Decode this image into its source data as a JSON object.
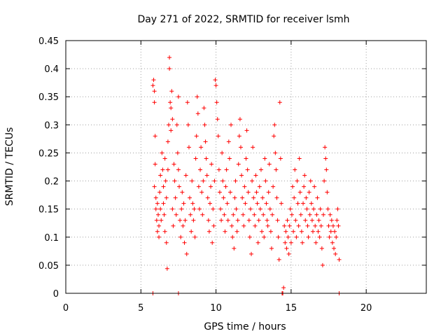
{
  "chart_data": {
    "type": "scatter",
    "title": "Day 271 of 2022, SRMTID for receiver lsmh",
    "xlabel": "GPS time / hours",
    "ylabel": "SRMTID / TECUs",
    "xlim": [
      0,
      24
    ],
    "ylim": [
      0,
      0.45
    ],
    "xticks": [
      0,
      5,
      10,
      15,
      20
    ],
    "xtick_labels": [
      "0",
      "5",
      "10",
      "15",
      "20"
    ],
    "yticks": [
      0,
      0.05,
      0.1,
      0.15,
      0.2,
      0.25,
      0.3,
      0.35,
      0.4,
      0.45
    ],
    "ytick_labels": [
      "0",
      "0.05",
      "0.1",
      "0.15",
      "0.2",
      "0.25",
      "0.3",
      "0.35",
      "0.4",
      "0.45"
    ],
    "grid": true,
    "marker": "+",
    "color": "#ff0000",
    "series": [
      {
        "name": "lsmh",
        "points": [
          [
            5.8,
            0.0
          ],
          [
            5.85,
            0.38
          ],
          [
            5.9,
            0.36
          ],
          [
            5.9,
            0.34
          ],
          [
            5.95,
            0.28
          ],
          [
            5.95,
            0.23
          ],
          [
            5.9,
            0.19
          ],
          [
            6.0,
            0.17
          ],
          [
            6.0,
            0.15
          ],
          [
            6.05,
            0.13
          ],
          [
            6.1,
            0.11
          ],
          [
            6.1,
            0.16
          ],
          [
            6.15,
            0.14
          ],
          [
            6.2,
            0.12
          ],
          [
            6.2,
            0.1
          ],
          [
            6.25,
            0.18
          ],
          [
            6.3,
            0.21
          ],
          [
            6.3,
            0.15
          ],
          [
            6.35,
            0.13
          ],
          [
            6.4,
            0.25
          ],
          [
            6.45,
            0.22
          ],
          [
            6.5,
            0.19
          ],
          [
            6.5,
            0.16
          ],
          [
            6.55,
            0.14
          ],
          [
            6.6,
            0.11
          ],
          [
            6.6,
            0.24
          ],
          [
            6.65,
            0.2
          ],
          [
            6.7,
            0.17
          ],
          [
            6.7,
            0.09
          ],
          [
            6.75,
            0.044
          ],
          [
            6.8,
            0.22
          ],
          [
            6.8,
            0.27
          ],
          [
            6.85,
            0.3
          ],
          [
            6.9,
            0.42
          ],
          [
            6.9,
            0.4
          ],
          [
            6.95,
            0.34
          ],
          [
            7.0,
            0.33
          ],
          [
            7.0,
            0.29
          ],
          [
            7.05,
            0.36
          ],
          [
            7.1,
            0.31
          ],
          [
            7.1,
            0.15
          ],
          [
            7.15,
            0.12
          ],
          [
            7.2,
            0.23
          ],
          [
            7.25,
            0.2
          ],
          [
            7.3,
            0.17
          ],
          [
            7.35,
            0.14
          ],
          [
            7.4,
            0.3
          ],
          [
            7.45,
            0.25
          ],
          [
            7.5,
            0.22
          ],
          [
            7.5,
            0.35
          ],
          [
            7.55,
            0.19
          ],
          [
            7.6,
            0.13
          ],
          [
            7.65,
            0.1
          ],
          [
            7.7,
            0.15
          ],
          [
            7.75,
            0.18
          ],
          [
            7.8,
            0.12
          ],
          [
            7.85,
            0.16
          ],
          [
            7.9,
            0.09
          ],
          [
            7.95,
            0.13
          ],
          [
            8.0,
            0.21
          ],
          [
            8.05,
            0.07
          ],
          [
            8.1,
            0.34
          ],
          [
            8.15,
            0.3
          ],
          [
            8.2,
            0.26
          ],
          [
            8.25,
            0.17
          ],
          [
            8.3,
            0.14
          ],
          [
            8.35,
            0.11
          ],
          [
            8.4,
            0.2
          ],
          [
            8.45,
            0.16
          ],
          [
            8.5,
            0.13
          ],
          [
            8.55,
            0.15
          ],
          [
            8.6,
            0.1
          ],
          [
            8.65,
            0.24
          ],
          [
            8.7,
            0.28
          ],
          [
            8.75,
            0.35
          ],
          [
            8.8,
            0.32
          ],
          [
            8.85,
            0.19
          ],
          [
            8.9,
            0.15
          ],
          [
            8.95,
            0.22
          ],
          [
            9.0,
            0.26
          ],
          [
            9.05,
            0.18
          ],
          [
            9.1,
            0.14
          ],
          [
            9.15,
            0.2
          ],
          [
            9.2,
            0.33
          ],
          [
            9.25,
            0.3
          ],
          [
            9.3,
            0.27
          ],
          [
            9.35,
            0.24
          ],
          [
            9.4,
            0.21
          ],
          [
            9.45,
            0.17
          ],
          [
            9.5,
            0.13
          ],
          [
            9.55,
            0.11
          ],
          [
            9.6,
            0.16
          ],
          [
            9.65,
            0.19
          ],
          [
            9.7,
            0.23
          ],
          [
            9.75,
            0.09
          ],
          [
            9.8,
            0.15
          ],
          [
            9.85,
            0.12
          ],
          [
            9.9,
            0.2
          ],
          [
            9.95,
            0.38
          ],
          [
            10.0,
            0.37
          ],
          [
            10.05,
            0.34
          ],
          [
            10.1,
            0.31
          ],
          [
            10.15,
            0.28
          ],
          [
            10.2,
            0.22
          ],
          [
            10.25,
            0.18
          ],
          [
            10.3,
            0.15
          ],
          [
            10.35,
            0.13
          ],
          [
            10.4,
            0.25
          ],
          [
            10.45,
            0.2
          ],
          [
            10.5,
            0.17
          ],
          [
            10.55,
            0.14
          ],
          [
            10.6,
            0.11
          ],
          [
            10.65,
            0.19
          ],
          [
            10.7,
            0.22
          ],
          [
            10.75,
            0.16
          ],
          [
            10.8,
            0.13
          ],
          [
            10.85,
            0.27
          ],
          [
            10.9,
            0.24
          ],
          [
            10.95,
            0.18
          ],
          [
            11.0,
            0.3
          ],
          [
            11.05,
            0.12
          ],
          [
            11.1,
            0.1
          ],
          [
            11.15,
            0.14
          ],
          [
            11.2,
            0.08
          ],
          [
            11.25,
            0.17
          ],
          [
            11.3,
            0.2
          ],
          [
            11.35,
            0.15
          ],
          [
            11.4,
            0.11
          ],
          [
            11.45,
            0.13
          ],
          [
            11.5,
            0.23
          ],
          [
            11.55,
            0.28
          ],
          [
            11.6,
            0.31
          ],
          [
            11.65,
            0.26
          ],
          [
            11.7,
            0.21
          ],
          [
            11.75,
            0.17
          ],
          [
            11.8,
            0.14
          ],
          [
            11.85,
            0.12
          ],
          [
            11.9,
            0.19
          ],
          [
            11.95,
            0.16
          ],
          [
            12.0,
            0.24
          ],
          [
            12.05,
            0.29
          ],
          [
            12.1,
            0.22
          ],
          [
            12.15,
            0.18
          ],
          [
            12.2,
            0.13
          ],
          [
            12.25,
            0.1
          ],
          [
            12.3,
            0.15
          ],
          [
            12.35,
            0.07
          ],
          [
            12.4,
            0.2
          ],
          [
            12.45,
            0.26
          ],
          [
            12.5,
            0.17
          ],
          [
            12.55,
            0.14
          ],
          [
            12.6,
            0.12
          ],
          [
            12.65,
            0.21
          ],
          [
            12.7,
            0.18
          ],
          [
            12.75,
            0.16
          ],
          [
            12.8,
            0.09
          ],
          [
            12.85,
            0.13
          ],
          [
            12.9,
            0.19
          ],
          [
            12.95,
            0.15
          ],
          [
            13.0,
            0.22
          ],
          [
            13.05,
            0.11
          ],
          [
            13.1,
            0.17
          ],
          [
            13.15,
            0.14
          ],
          [
            13.2,
            0.1
          ],
          [
            13.25,
            0.24
          ],
          [
            13.3,
            0.2
          ],
          [
            13.35,
            0.16
          ],
          [
            13.4,
            0.13
          ],
          [
            13.45,
            0.12
          ],
          [
            13.5,
            0.18
          ],
          [
            13.55,
            0.23
          ],
          [
            13.6,
            0.15
          ],
          [
            13.65,
            0.11
          ],
          [
            13.7,
            0.08
          ],
          [
            13.75,
            0.14
          ],
          [
            13.8,
            0.19
          ],
          [
            13.85,
            0.28
          ],
          [
            13.9,
            0.3
          ],
          [
            13.95,
            0.25
          ],
          [
            14.0,
            0.22
          ],
          [
            14.05,
            0.17
          ],
          [
            14.1,
            0.13
          ],
          [
            14.15,
            0.1
          ],
          [
            14.2,
            0.06
          ],
          [
            14.25,
            0.34
          ],
          [
            14.3,
            0.24
          ],
          [
            14.35,
            0.16
          ],
          [
            14.4,
            0.0
          ],
          [
            14.45,
            0.0
          ],
          [
            14.5,
            0.01
          ],
          [
            14.55,
            0.12
          ],
          [
            14.6,
            0.09
          ],
          [
            14.65,
            0.11
          ],
          [
            14.7,
            0.08
          ],
          [
            14.75,
            0.13
          ],
          [
            14.8,
            0.1
          ],
          [
            14.85,
            0.07
          ],
          [
            14.9,
            0.12
          ],
          [
            14.95,
            0.15
          ],
          [
            15.0,
            0.09
          ],
          [
            15.05,
            0.14
          ],
          [
            15.1,
            0.19
          ],
          [
            15.15,
            0.11
          ],
          [
            15.2,
            0.17
          ],
          [
            15.25,
            0.22
          ],
          [
            15.3,
            0.13
          ],
          [
            15.35,
            0.1
          ],
          [
            15.4,
            0.2
          ],
          [
            15.45,
            0.16
          ],
          [
            15.5,
            0.12
          ],
          [
            15.55,
            0.24
          ],
          [
            15.6,
            0.18
          ],
          [
            15.65,
            0.14
          ],
          [
            15.7,
            0.11
          ],
          [
            15.75,
            0.09
          ],
          [
            15.8,
            0.16
          ],
          [
            15.85,
            0.19
          ],
          [
            15.9,
            0.21
          ],
          [
            15.95,
            0.13
          ],
          [
            16.0,
            0.17
          ],
          [
            16.05,
            0.15
          ],
          [
            16.1,
            0.12
          ],
          [
            16.15,
            0.1
          ],
          [
            16.2,
            0.18
          ],
          [
            16.25,
            0.14
          ],
          [
            16.3,
            0.2
          ],
          [
            16.35,
            0.16
          ],
          [
            16.4,
            0.13
          ],
          [
            16.45,
            0.11
          ],
          [
            16.5,
            0.15
          ],
          [
            16.55,
            0.19
          ],
          [
            16.6,
            0.12
          ],
          [
            16.65,
            0.09
          ],
          [
            16.7,
            0.14
          ],
          [
            16.75,
            0.17
          ],
          [
            16.8,
            0.11
          ],
          [
            16.85,
            0.13
          ],
          [
            16.9,
            0.1
          ],
          [
            16.95,
            0.15
          ],
          [
            17.0,
            0.12
          ],
          [
            17.05,
            0.08
          ],
          [
            17.1,
            0.05
          ],
          [
            17.15,
            0.14
          ],
          [
            17.2,
            0.2
          ],
          [
            17.25,
            0.26
          ],
          [
            17.3,
            0.24
          ],
          [
            17.35,
            0.22
          ],
          [
            17.4,
            0.18
          ],
          [
            17.45,
            0.15
          ],
          [
            17.5,
            0.12
          ],
          [
            17.55,
            0.1
          ],
          [
            17.6,
            0.14
          ],
          [
            17.65,
            0.11
          ],
          [
            17.7,
            0.13
          ],
          [
            17.75,
            0.09
          ],
          [
            17.8,
            0.12
          ],
          [
            17.85,
            0.08
          ],
          [
            17.9,
            0.11
          ],
          [
            17.95,
            0.07
          ],
          [
            18.0,
            0.1
          ],
          [
            18.05,
            0.13
          ],
          [
            18.1,
            0.15
          ],
          [
            18.15,
            0.12
          ],
          [
            18.2,
            0.06
          ],
          [
            18.2,
            0.0
          ],
          [
            7.5,
            0.0
          ],
          [
            5.8,
            0.37
          ]
        ]
      }
    ]
  }
}
